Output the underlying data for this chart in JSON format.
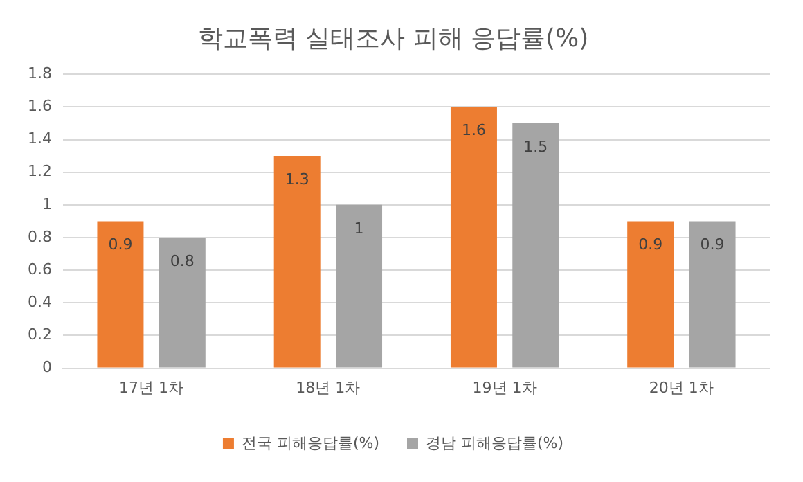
{
  "chart_data": {
    "type": "bar",
    "title": "학교폭력 실태조사 피해 응답률(%)",
    "categories": [
      "17년 1차",
      "18년 1차",
      "19년 1차",
      "20년 1차"
    ],
    "series": [
      {
        "name": "전국 피해응답률(%)",
        "color": "#ed7d31",
        "values": [
          0.9,
          1.3,
          1.6,
          0.9
        ]
      },
      {
        "name": "경남 피해응답률(%)",
        "color": "#a5a5a5",
        "values": [
          0.8,
          1,
          1.5,
          0.9
        ]
      }
    ],
    "ylim": [
      0,
      1.8
    ],
    "yticks": [
      0,
      0.2,
      0.4,
      0.6,
      0.8,
      1,
      1.2,
      1.4,
      1.6,
      1.8
    ],
    "grid": "y",
    "legend": "bottom",
    "data_labels": true
  }
}
